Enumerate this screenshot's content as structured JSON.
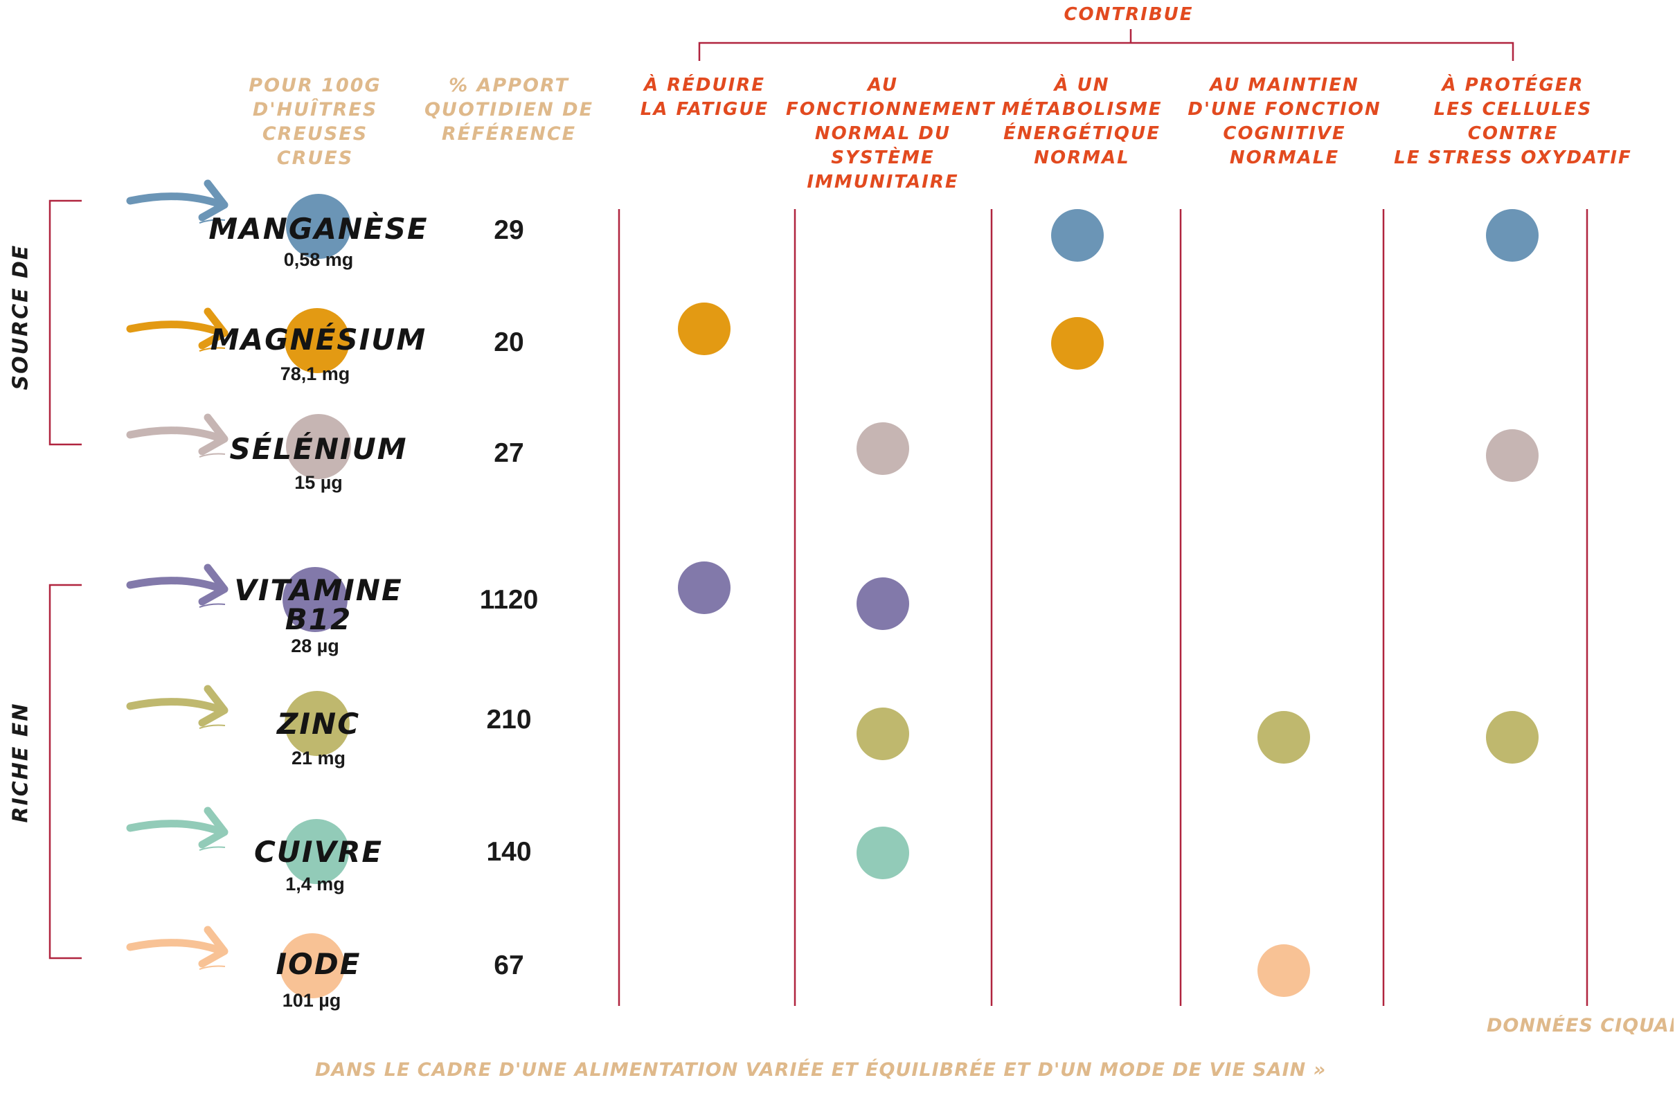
{
  "header": {
    "contribue": "CONTRIBUE",
    "per_100g": [
      "POUR 100G",
      "D'HUÎTRES",
      "CREUSES CRUES"
    ],
    "pct_ref": [
      "% APPORT",
      "QUOTIDIEN DE",
      "RÉFÉRENCE"
    ],
    "benefits": [
      [
        "À RÉDUIRE",
        "LA FATIGUE"
      ],
      [
        "AU",
        "FONCTIONNEMENT",
        "NORMAL DU",
        "SYSTÈME",
        "IMMUNITAIRE"
      ],
      [
        "À UN",
        "MÉTABOLISME",
        "ÉNERGÉTIQUE",
        "NORMAL"
      ],
      [
        "AU MAINTIEN",
        "D'UNE FONCTION",
        "COGNITIVE",
        "NORMALE"
      ],
      [
        "À PROTÉGER",
        "LES CELLULES CONTRE",
        "LE STRESS OXYDATIF"
      ]
    ]
  },
  "groups": [
    {
      "label": "SOURCE DE",
      "rows": [
        0,
        1,
        2
      ]
    },
    {
      "label": "RICHE EN",
      "rows": [
        3,
        4,
        5,
        6
      ]
    }
  ],
  "minerals": [
    {
      "name": [
        "MANGANÈSE"
      ],
      "qty": "0,58 mg",
      "pct": "29",
      "color": "#6b95b6",
      "marks": [
        3,
        5
      ]
    },
    {
      "name": [
        "MAGNÉSIUM"
      ],
      "qty": "78,1 mg",
      "pct": "20",
      "color": "#e39a13",
      "marks": [
        1,
        3
      ]
    },
    {
      "name": [
        "SÉLÉNIUM"
      ],
      "qty": "15 µg",
      "pct": "27",
      "color": "#c6b5b3",
      "marks": [
        2,
        5
      ]
    },
    {
      "name": [
        "VITAMINE",
        "B12"
      ],
      "qty": "28 µg",
      "pct": "1120",
      "color": "#8279aa",
      "marks": [
        1,
        2
      ]
    },
    {
      "name": [
        "ZINC"
      ],
      "qty": "21 mg",
      "pct": "210",
      "color": "#bfb86e",
      "marks": [
        2,
        4,
        5
      ]
    },
    {
      "name": [
        "CUIVRE"
      ],
      "qty": "1,4 mg",
      "pct": "140",
      "color": "#92cbb8",
      "marks": [
        2
      ]
    },
    {
      "name": [
        "IODE"
      ],
      "qty": "101 µg",
      "pct": "67",
      "color": "#f8c295",
      "marks": [
        4
      ]
    }
  ],
  "footer": {
    "source": "DONNÉES CIQUAL",
    "note": "DANS LE CADRE D'UNE ALIMENTATION VARIÉE ET ÉQUILIBRÉE ET D'UN MODE DE VIE SAIN »"
  },
  "colors": {
    "line": "#b0243f",
    "header_tan": "#dfb98b",
    "header_red": "#e24a1f"
  }
}
